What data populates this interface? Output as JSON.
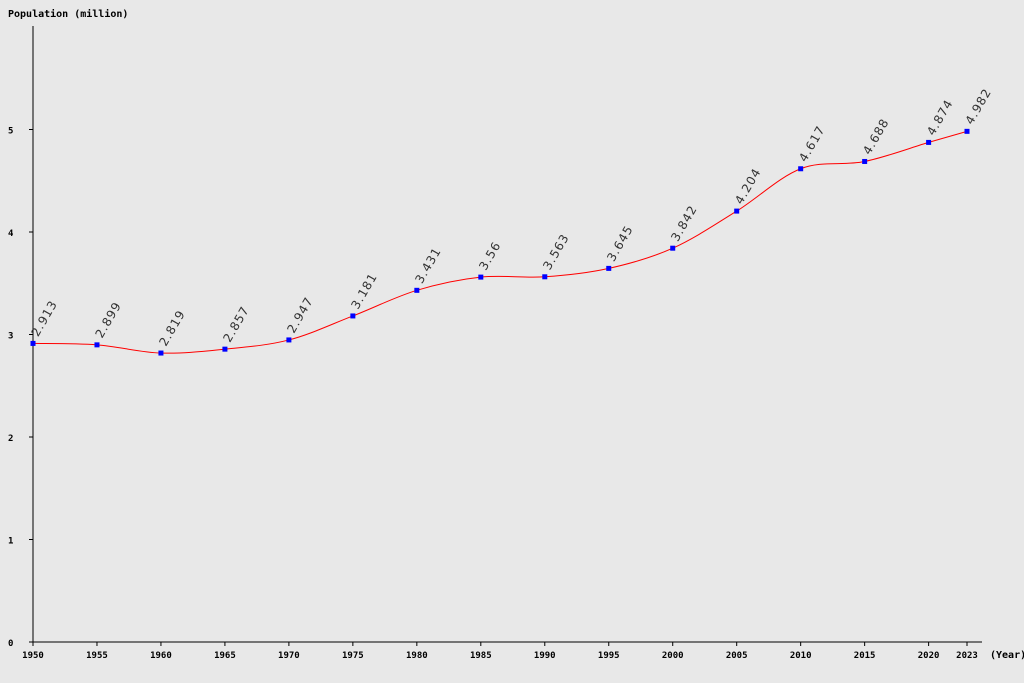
{
  "chart_data": {
    "type": "line",
    "ylabel": "Population (million)",
    "xlabel": "(Year)",
    "x": [
      1950,
      1955,
      1960,
      1965,
      1970,
      1975,
      1980,
      1985,
      1990,
      1995,
      2000,
      2005,
      2010,
      2015,
      2020,
      2023
    ],
    "x_tick_labels": [
      "1950",
      "1955",
      "1960",
      "1965",
      "1970",
      "1975",
      "1980",
      "1985",
      "1990",
      "1995",
      "2000",
      "2005",
      "2010",
      "2015",
      "2020",
      "2023"
    ],
    "series": [
      {
        "values": [
          2.913,
          2.899,
          2.819,
          2.857,
          2.947,
          3.181,
          3.431,
          3.56,
          3.563,
          3.645,
          3.842,
          4.204,
          4.617,
          4.688,
          4.874,
          4.982
        ],
        "data_labels": [
          "2.913",
          "2.899",
          "2.819",
          "2.857",
          "2.947",
          "3.181",
          "3.431",
          "3.56",
          "3.563",
          "3.645",
          "3.842",
          "4.204",
          "4.617",
          "4.688",
          "4.874",
          "4.982"
        ],
        "line_color": "#ff0000",
        "marker_color": "#0000ff"
      }
    ],
    "y_ticks": [
      0,
      1,
      2,
      3,
      4,
      5
    ],
    "y_tick_labels": [
      "0",
      "1",
      "2",
      "3",
      "4",
      "5"
    ],
    "ylim": [
      0,
      6
    ],
    "xlim": [
      1950,
      2023
    ],
    "grid": false,
    "legend": "none",
    "background_color": "#e8e8e8",
    "axis_color": "#000000"
  }
}
